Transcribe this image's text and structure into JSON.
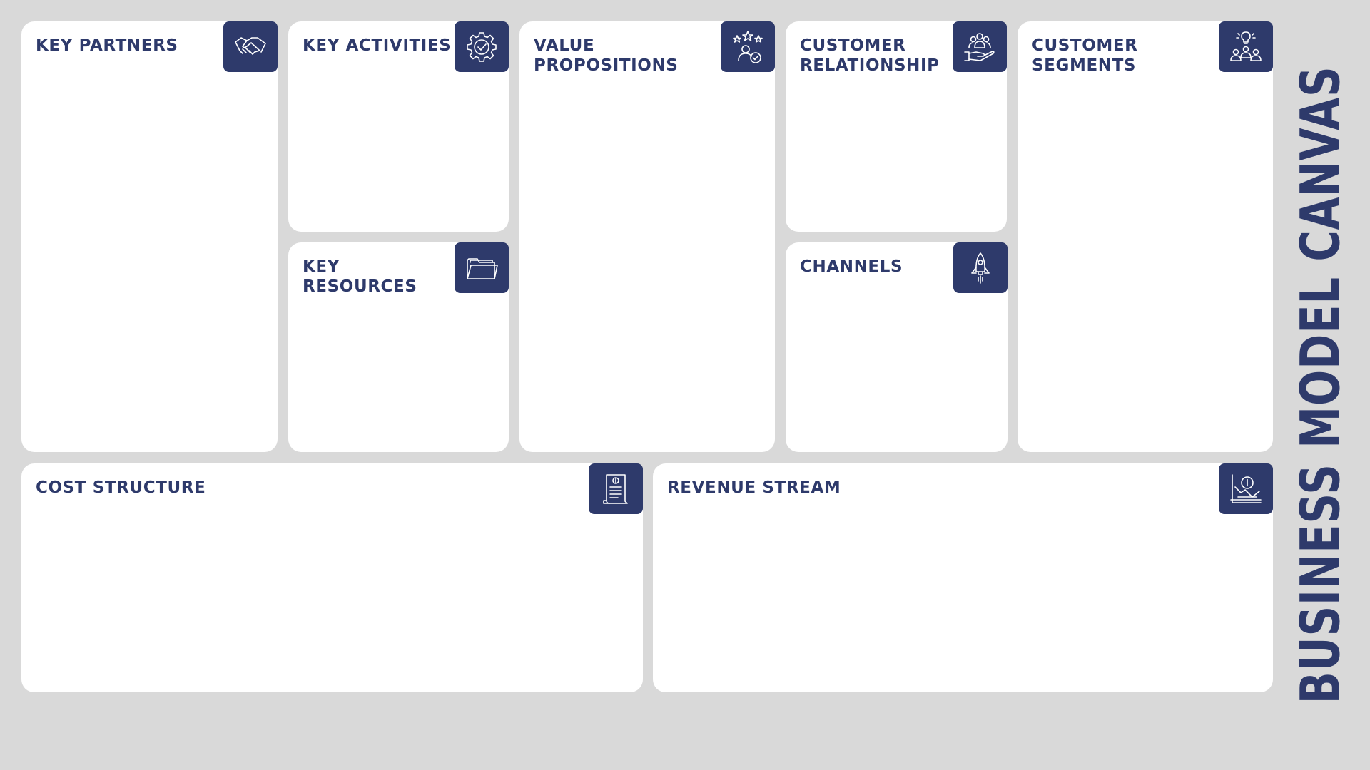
{
  "canvas_title": "BUSINESS MODEL CANVAS",
  "colors": {
    "background": "#d9d9d9",
    "card": "#ffffff",
    "accent": "#2e3a6b"
  },
  "blocks": {
    "key_partners": {
      "title": "KEY PARTNERS",
      "icon": "handshake-icon"
    },
    "key_activities": {
      "title": "KEY ACTIVITIES",
      "icon": "gear-check-icon"
    },
    "key_resources": {
      "title": "KEY\nRESOURCES",
      "icon": "folder-icon"
    },
    "value_propositions": {
      "title": "VALUE\nPROPOSITIONS",
      "icon": "stars-user-icon"
    },
    "customer_relationship": {
      "title": "CUSTOMER\nRELATIONSHIP",
      "icon": "hand-people-icon"
    },
    "channels": {
      "title": "CHANNELS",
      "icon": "rocket-icon"
    },
    "customer_segments": {
      "title": "CUSTOMER\nSEGMENTS",
      "icon": "group-idea-icon"
    },
    "cost_structure": {
      "title": "COST STRUCTURE",
      "icon": "invoice-icon"
    },
    "revenue_stream": {
      "title": "REVENUE STREAM",
      "icon": "revenue-chart-icon"
    }
  }
}
